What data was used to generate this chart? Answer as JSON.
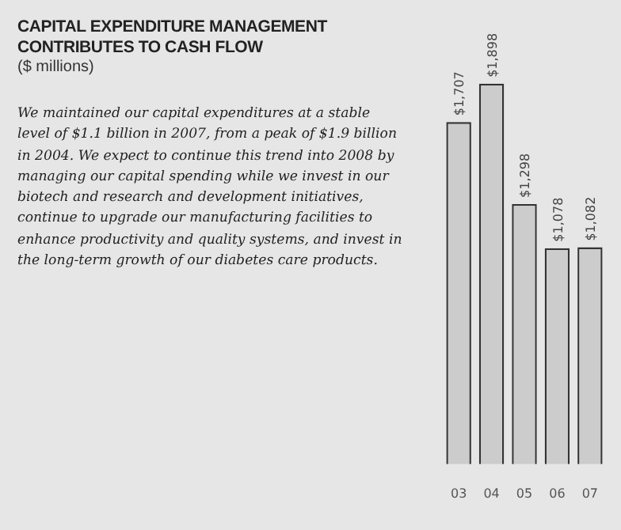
{
  "chart_data": {
    "type": "bar",
    "title": "CAPITAL EXPENDITURE MANAGEMENT CONTRIBUTES TO CASH FLOW",
    "subtitle": "($ millions)",
    "annotations": [
      "We maintained our capital expenditures at a stable level of $1.1 billion in 2007, from a peak of $1.9 billion in 2004.  We expect to continue this trend into 2008 by managing our capital spending while we invest in our biotech and research and development initiatives, continue to upgrade our manufacturing facilities to enhance productivity and quality systems, and invest in the long-term growth of our diabetes care products."
    ],
    "categories": [
      "03",
      "04",
      "05",
      "06",
      "07"
    ],
    "values": [
      1707,
      1898,
      1298,
      1078,
      1082
    ],
    "value_labels": [
      "$1,707",
      "$1,898",
      "$1,298",
      "$1,078",
      "$1,082"
    ],
    "color": "#cccccc",
    "grid": false
  }
}
